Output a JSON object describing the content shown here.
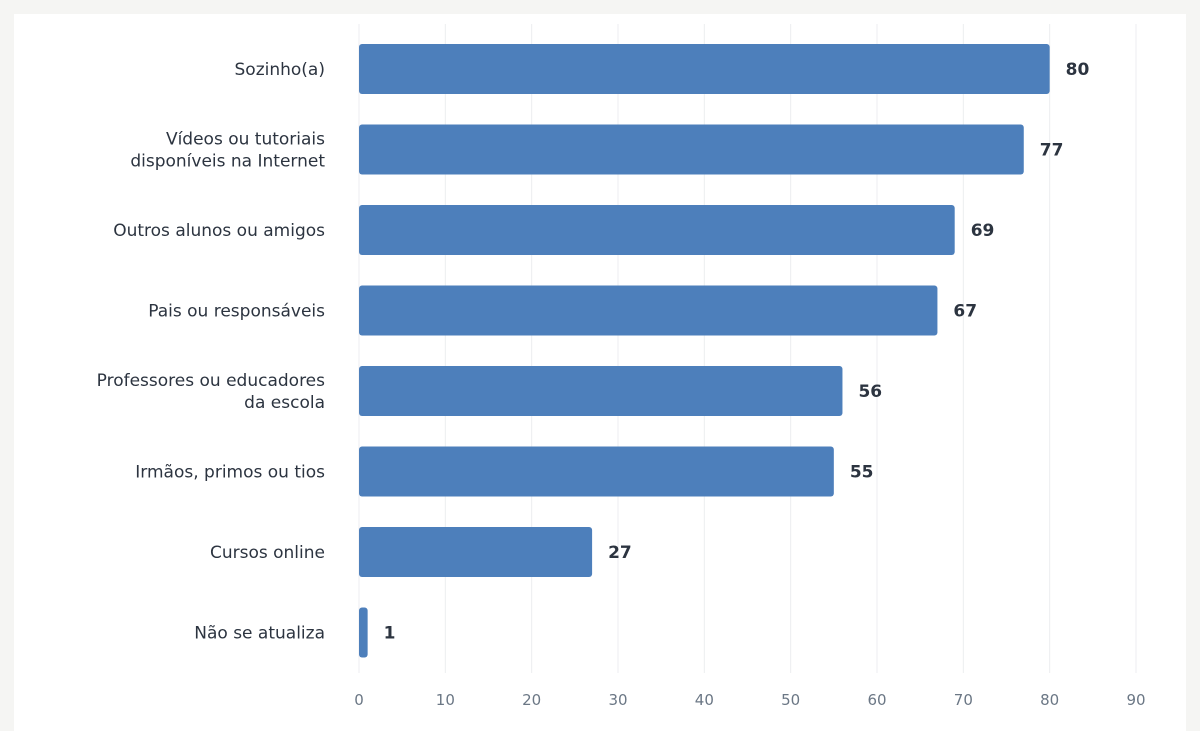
{
  "chart_data": {
    "type": "bar",
    "orientation": "horizontal",
    "categories": [
      [
        "Sozinho(a)"
      ],
      [
        "Vídeos ou tutoriais",
        "disponíveis na Internet"
      ],
      [
        "Outros alunos ou amigos"
      ],
      [
        "Pais ou responsáveis"
      ],
      [
        "Professores ou educadores",
        "da escola"
      ],
      [
        "Irmãos, primos ou tios"
      ],
      [
        "Cursos online"
      ],
      [
        "Não se atualiza"
      ]
    ],
    "values": [
      80,
      77,
      69,
      67,
      56,
      55,
      27,
      1
    ],
    "xlim": [
      0,
      90
    ],
    "xticks": [
      0,
      10,
      20,
      30,
      40,
      50,
      60,
      70,
      80,
      90
    ],
    "grid": "vertical",
    "bar_color": "#4d7fbb",
    "data_labels": true
  }
}
